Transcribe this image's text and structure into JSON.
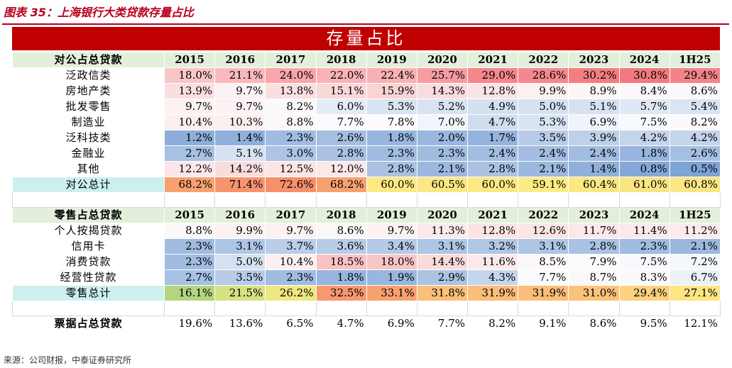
{
  "title": "图表 35：上海银行大类贷款存量占比",
  "banner": "存量占比",
  "years": [
    "2015",
    "2016",
    "2017",
    "2018",
    "2019",
    "2020",
    "2021",
    "2022",
    "2023",
    "2024",
    "1H25"
  ],
  "corporate": {
    "header": "对公占总贷款",
    "rows": [
      {
        "label": "泛政信类",
        "values": [
          "18.0%",
          "21.1%",
          "24.0%",
          "22.0%",
          "22.4%",
          "25.7%",
          "29.0%",
          "28.6%",
          "30.2%",
          "30.8%",
          "29.4%"
        ],
        "colors": [
          "#f9c6c8",
          "#f9b9bc",
          "#f7a6aa",
          "#f9b3b6",
          "#f8b1b4",
          "#f69ca1",
          "#f4868c",
          "#f4888e",
          "#f37d83",
          "#f3797f",
          "#f48389"
        ]
      },
      {
        "label": "房地产类",
        "values": [
          "13.9%",
          "9.7%",
          "13.8%",
          "15.1%",
          "15.9%",
          "14.3%",
          "12.8%",
          "9.9%",
          "8.9%",
          "8.4%",
          "8.6%"
        ],
        "colors": [
          "#fbdfe0",
          "#fcf2f3",
          "#fbdfe0",
          "#fad8d9",
          "#fad3d5",
          "#fbdcde",
          "#fbe4e5",
          "#fcf1f2",
          "#fcf6f7",
          "#fcf8f9",
          "#fcf7f8"
        ]
      },
      {
        "label": "批发零售",
        "values": [
          "9.7%",
          "9.7%",
          "8.2%",
          "6.0%",
          "5.3%",
          "5.2%",
          "4.9%",
          "5.0%",
          "5.1%",
          "5.7%",
          "5.4%"
        ],
        "colors": [
          "#fcf2f3",
          "#fcf2f3",
          "#fcf9fa",
          "#e4ecf6",
          "#d9e4f2",
          "#d8e3f2",
          "#d3e0f0",
          "#d5e1f0",
          "#d6e2f1",
          "#dfe8f4",
          "#dae5f3"
        ]
      },
      {
        "label": "制造业",
        "values": [
          "10.4%",
          "10.3%",
          "8.8%",
          "7.7%",
          "7.8%",
          "7.0%",
          "4.7%",
          "5.3%",
          "6.9%",
          "7.5%",
          "8.2%"
        ],
        "colors": [
          "#fcefef",
          "#fcefef",
          "#fcf7f8",
          "#fbfbfd",
          "#fcfcfe",
          "#f1f5fa",
          "#d0ddef",
          "#d9e4f2",
          "#eff3fa",
          "#f8f9fc",
          "#fcf9fa"
        ]
      },
      {
        "label": "泛科技类",
        "values": [
          "1.2%",
          "1.4%",
          "2.3%",
          "2.6%",
          "1.8%",
          "2.0%",
          "1.7%",
          "3.5%",
          "3.9%",
          "4.2%",
          "4.2%"
        ],
        "colors": [
          "#8daedb",
          "#90b0dc",
          "#a0bce1",
          "#a5bfe2",
          "#97b5de",
          "#9ab7df",
          "#95b3dd",
          "#b7cbe8",
          "#bed0ea",
          "#c3d4eb",
          "#c3d4eb"
        ]
      },
      {
        "label": "金融业",
        "values": [
          "2.7%",
          "5.1%",
          "3.0%",
          "2.8%",
          "2.3%",
          "2.3%",
          "2.4%",
          "2.4%",
          "2.4%",
          "1.8%",
          "2.6%"
        ],
        "colors": [
          "#a7c1e3",
          "#d6e2f1",
          "#acc5e4",
          "#a9c2e3",
          "#a0bce1",
          "#a0bce1",
          "#a2bde1",
          "#a2bde1",
          "#a2bde1",
          "#97b5de",
          "#a5bfe2"
        ]
      },
      {
        "label": "其他",
        "values": [
          "12.2%",
          "14.2%",
          "12.5%",
          "12.0%",
          "2.8%",
          "2.1%",
          "2.8%",
          "2.1%",
          "1.4%",
          "0.8%",
          "0.5%"
        ],
        "colors": [
          "#fbe7e8",
          "#fadcdd",
          "#fbe5e6",
          "#fbe8e9",
          "#a9c2e3",
          "#9cb8df",
          "#a9c2e3",
          "#9cb8df",
          "#90b0dc",
          "#84a7d7",
          "#7ea3d5"
        ]
      }
    ],
    "total": {
      "label": "对公总计",
      "values": [
        "68.2%",
        "71.4%",
        "72.6%",
        "68.2%",
        "60.0%",
        "60.5%",
        "60.0%",
        "59.1%",
        "60.4%",
        "61.0%",
        "60.8%"
      ],
      "colors": [
        "#f8a170",
        "#f7946d",
        "#f68f6b",
        "#f8a170",
        "#fbe983",
        "#fbe783",
        "#fbe983",
        "#fbec84",
        "#fbe883",
        "#fae583",
        "#fae683"
      ]
    }
  },
  "retail": {
    "header": "零售占总贷款",
    "rows": [
      {
        "label": "个人按揭贷款",
        "values": [
          "8.8%",
          "9.9%",
          "9.7%",
          "8.6%",
          "9.7%",
          "11.3%",
          "12.8%",
          "12.6%",
          "11.7%",
          "11.4%",
          "11.2%"
        ],
        "colors": [
          "#fcf7f8",
          "#fcf1f2",
          "#fcf2f3",
          "#fcf7f8",
          "#fcf2f3",
          "#fbeaeb",
          "#fbe4e5",
          "#fbe5e6",
          "#fbe9ea",
          "#fbeaeb",
          "#fbebec"
        ]
      },
      {
        "label": "信用卡",
        "values": [
          "2.3%",
          "3.1%",
          "3.7%",
          "3.6%",
          "3.4%",
          "3.1%",
          "3.2%",
          "3.1%",
          "2.8%",
          "2.3%",
          "2.1%"
        ],
        "colors": [
          "#a0bce1",
          "#aec6e5",
          "#bacde9",
          "#b8cce8",
          "#b5cae7",
          "#aec6e5",
          "#b0c7e6",
          "#aec6e5",
          "#a9c2e3",
          "#a0bce1",
          "#9cb8df"
        ]
      },
      {
        "label": "消费贷款",
        "values": [
          "2.3%",
          "5.0%",
          "10.4%",
          "18.5%",
          "18.0%",
          "14.4%",
          "11.6%",
          "8.5%",
          "7.9%",
          "7.5%",
          "7.2%"
        ],
        "colors": [
          "#a0bce1",
          "#d5e1f0",
          "#fcefef",
          "#f9c3c5",
          "#f9c6c8",
          "#fadbdc",
          "#fbe9ea",
          "#fcf8f9",
          "#fcfbfc",
          "#f8f9fc",
          "#f4f7fb"
        ]
      },
      {
        "label": "经营性贷款",
        "values": [
          "2.7%",
          "3.5%",
          "2.3%",
          "1.8%",
          "1.9%",
          "2.9%",
          "4.3%",
          "7.7%",
          "8.7%",
          "8.3%",
          "6.7%"
        ],
        "colors": [
          "#a7c1e3",
          "#b7cbe8",
          "#a0bce1",
          "#97b5de",
          "#99b6de",
          "#abc4e4",
          "#c5d5ec",
          "#fbfbfd",
          "#fcf7f8",
          "#fcf9fa",
          "#ecf1f9"
        ]
      }
    ],
    "total": {
      "label": "零售总计",
      "values": [
        "16.1%",
        "21.5%",
        "26.2%",
        "32.5%",
        "33.1%",
        "31.8%",
        "31.9%",
        "31.9%",
        "31.0%",
        "29.4%",
        "27.1%"
      ],
      "colors": [
        "#b5d480",
        "#d6e282",
        "#eee783",
        "#f7986e",
        "#f8a170",
        "#fcbe7b",
        "#fcbd7a",
        "#fcbd7a",
        "#fcc27c",
        "#fdd17f",
        "#fde682"
      ]
    }
  },
  "bills": {
    "label": "票据占总贷款",
    "values": [
      "19.6%",
      "13.6%",
      "6.5%",
      "4.7%",
      "6.9%",
      "7.7%",
      "8.2%",
      "9.1%",
      "8.6%",
      "9.5%",
      "12.1%"
    ]
  },
  "source": "来源：公司财报，中泰证券研究所"
}
